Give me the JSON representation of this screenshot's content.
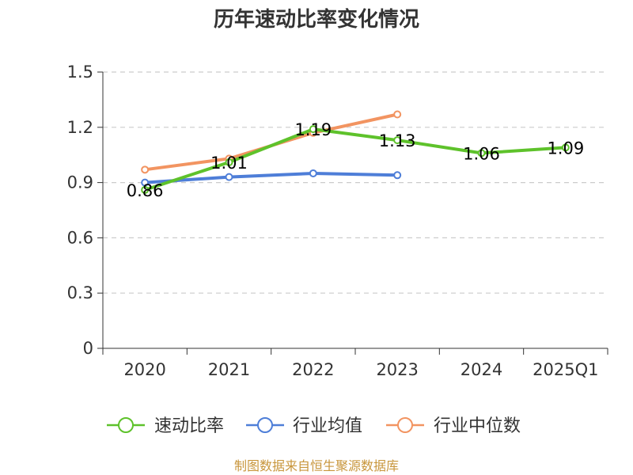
{
  "chart_data": {
    "type": "line",
    "title": "历年速动比率变化情况",
    "categories": [
      "2020",
      "2021",
      "2022",
      "2023",
      "2024",
      "2025Q1"
    ],
    "ylim": [
      0,
      1.5
    ],
    "yticks": [
      "0",
      "0.3",
      "0.6",
      "0.9",
      "1.2",
      "1.5"
    ],
    "grid": true,
    "legend_position": "bottom",
    "series": [
      {
        "name": "速动比率",
        "color": "#5ec22b",
        "values": [
          0.86,
          1.01,
          1.19,
          1.13,
          1.06,
          1.09
        ],
        "labels": [
          "0.86",
          "1.01",
          "1.19",
          "1.13",
          "1.06",
          "1.09"
        ],
        "show_labels": true
      },
      {
        "name": "行业均值",
        "color": "#4e7ed8",
        "values": [
          0.9,
          0.93,
          0.95,
          0.94,
          null,
          null
        ],
        "show_labels": false
      },
      {
        "name": "行业中位数",
        "color": "#f29461",
        "values": [
          0.97,
          1.03,
          1.17,
          1.27,
          null,
          null
        ],
        "show_labels": false
      }
    ]
  },
  "footer": "制图数据来自恒生聚源数据库"
}
